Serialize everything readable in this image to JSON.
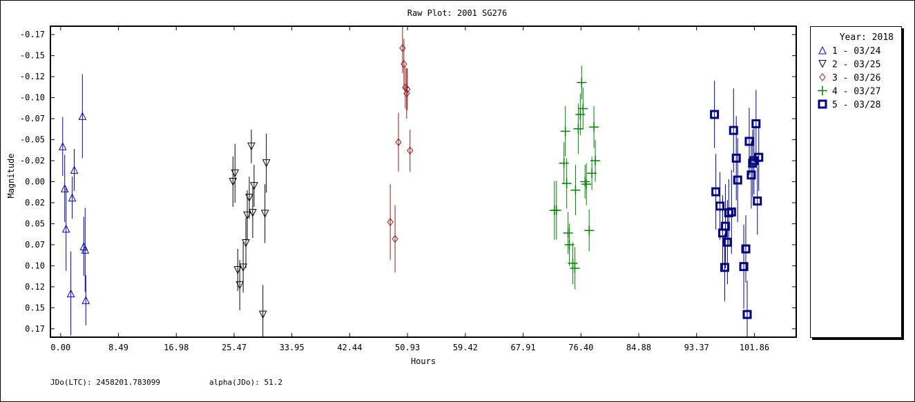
{
  "chart_data": {
    "type": "scatter",
    "title": "Raw Plot: 2001 SG276",
    "xlabel": "Hours",
    "ylabel": "Magnitude",
    "xlim": [
      -1.5,
      108.0
    ],
    "ylim": [
      0.185,
      -0.185
    ],
    "y_inverted": true,
    "grid": false,
    "legend_position": "right",
    "legend_title": "Year: 2018",
    "x_ticks": [
      {
        "v": 0.0,
        "label": "0.00"
      },
      {
        "v": 8.49,
        "label": "8.49"
      },
      {
        "v": 16.98,
        "label": "16.98"
      },
      {
        "v": 25.47,
        "label": "25.47"
      },
      {
        "v": 33.95,
        "label": "33.95"
      },
      {
        "v": 42.44,
        "label": "42.44"
      },
      {
        "v": 50.93,
        "label": "50.93"
      },
      {
        "v": 59.42,
        "label": "59.42"
      },
      {
        "v": 67.91,
        "label": "67.91"
      },
      {
        "v": 76.4,
        "label": "76.40"
      },
      {
        "v": 84.88,
        "label": "84.88"
      },
      {
        "v": 93.37,
        "label": "93.37"
      },
      {
        "v": 101.86,
        "label": "101.86"
      }
    ],
    "y_ticks": [
      {
        "v": -0.175,
        "label": "-0.17"
      },
      {
        "v": -0.15,
        "label": "-0.15"
      },
      {
        "v": -0.125,
        "label": "-0.12"
      },
      {
        "v": -0.1,
        "label": "-0.10"
      },
      {
        "v": -0.075,
        "label": "-0.07"
      },
      {
        "v": -0.05,
        "label": "-0.05"
      },
      {
        "v": -0.025,
        "label": "-0.02"
      },
      {
        "v": 0.0,
        "label": "0.00"
      },
      {
        "v": 0.025,
        "label": "0.02"
      },
      {
        "v": 0.05,
        "label": "0.05"
      },
      {
        "v": 0.075,
        "label": "0.07"
      },
      {
        "v": 0.1,
        "label": "0.10"
      },
      {
        "v": 0.125,
        "label": "0.12"
      },
      {
        "v": 0.15,
        "label": "0.15"
      },
      {
        "v": 0.175,
        "label": "0.17"
      }
    ],
    "series": [
      {
        "name": "1 - 03/24",
        "marker": "triangle-up",
        "color": "#0000c0",
        "points": [
          {
            "x": 0.3,
            "y": -0.042,
            "err": 0.035
          },
          {
            "x": 0.6,
            "y": 0.008,
            "err": 0.04
          },
          {
            "x": 0.8,
            "y": 0.056,
            "err": 0.05
          },
          {
            "x": 1.5,
            "y": 0.133,
            "err": 0.05
          },
          {
            "x": 1.7,
            "y": 0.019,
            "err": 0.025
          },
          {
            "x": 2.0,
            "y": -0.014,
            "err": 0.025
          },
          {
            "x": 3.2,
            "y": -0.078,
            "err": 0.05
          },
          {
            "x": 3.4,
            "y": 0.077,
            "err": 0.035
          },
          {
            "x": 3.6,
            "y": 0.081,
            "err": 0.05
          },
          {
            "x": 3.7,
            "y": 0.141,
            "err": 0.03
          }
        ]
      },
      {
        "name": "2 - 03/25",
        "marker": "triangle-down",
        "color": "#000000",
        "points": [
          {
            "x": 25.3,
            "y": 0.0,
            "err": 0.03
          },
          {
            "x": 25.6,
            "y": -0.01,
            "err": 0.035
          },
          {
            "x": 26.0,
            "y": 0.105,
            "err": 0.025
          },
          {
            "x": 26.3,
            "y": 0.123,
            "err": 0.03
          },
          {
            "x": 26.8,
            "y": 0.102,
            "err": 0.03
          },
          {
            "x": 27.2,
            "y": 0.073,
            "err": 0.03
          },
          {
            "x": 27.4,
            "y": 0.04,
            "err": 0.03
          },
          {
            "x": 27.7,
            "y": 0.019,
            "err": 0.025
          },
          {
            "x": 28.0,
            "y": -0.042,
            "err": 0.02
          },
          {
            "x": 28.2,
            "y": 0.037,
            "err": 0.03
          },
          {
            "x": 28.4,
            "y": 0.005,
            "err": 0.025
          },
          {
            "x": 29.7,
            "y": 0.158,
            "err": 0.035
          },
          {
            "x": 30.0,
            "y": 0.038,
            "err": 0.035
          },
          {
            "x": 30.2,
            "y": -0.022,
            "err": 0.035
          }
        ]
      },
      {
        "name": "3 - 03/26",
        "marker": "diamond",
        "color": "#8b1a1a",
        "points": [
          {
            "x": 48.4,
            "y": 0.048,
            "err": 0.045
          },
          {
            "x": 49.1,
            "y": 0.068,
            "err": 0.04
          },
          {
            "x": 49.6,
            "y": -0.047,
            "err": 0.035
          },
          {
            "x": 50.2,
            "y": -0.159,
            "err": 0.03
          },
          {
            "x": 50.4,
            "y": -0.14,
            "err": 0.03
          },
          {
            "x": 50.6,
            "y": -0.112,
            "err": 0.025
          },
          {
            "x": 50.8,
            "y": -0.105,
            "err": 0.03
          },
          {
            "x": 50.9,
            "y": -0.11,
            "err": 0.025
          },
          {
            "x": 51.3,
            "y": -0.037,
            "err": 0.025
          }
        ]
      },
      {
        "name": "4 - 03/27",
        "marker": "plus",
        "color": "#008000",
        "points": [
          {
            "x": 72.5,
            "y": 0.034,
            "err": 0.035
          },
          {
            "x": 72.8,
            "y": 0.034,
            "err": 0.035
          },
          {
            "x": 73.9,
            "y": -0.022,
            "err": 0.025
          },
          {
            "x": 74.1,
            "y": -0.06,
            "err": 0.03
          },
          {
            "x": 74.3,
            "y": 0.002,
            "err": 0.03
          },
          {
            "x": 74.5,
            "y": 0.061,
            "err": 0.025
          },
          {
            "x": 74.7,
            "y": 0.075,
            "err": 0.025
          },
          {
            "x": 75.2,
            "y": 0.097,
            "err": 0.025
          },
          {
            "x": 75.5,
            "y": 0.103,
            "err": 0.025
          },
          {
            "x": 75.6,
            "y": 0.01,
            "err": 0.03
          },
          {
            "x": 76.0,
            "y": -0.063,
            "err": 0.03
          },
          {
            "x": 76.3,
            "y": -0.08,
            "err": 0.025
          },
          {
            "x": 76.5,
            "y": -0.118,
            "err": 0.02
          },
          {
            "x": 76.7,
            "y": -0.087,
            "err": 0.025
          },
          {
            "x": 77.0,
            "y": 0.0,
            "err": 0.02
          },
          {
            "x": 77.2,
            "y": 0.003,
            "err": 0.025
          },
          {
            "x": 77.6,
            "y": 0.058,
            "err": 0.025
          },
          {
            "x": 78.0,
            "y": -0.01,
            "err": 0.02
          },
          {
            "x": 78.3,
            "y": -0.065,
            "err": 0.025
          },
          {
            "x": 78.5,
            "y": -0.025,
            "err": 0.025
          }
        ]
      },
      {
        "name": "5 - 03/28",
        "marker": "square",
        "color": "#00007f",
        "points": [
          {
            "x": 96.0,
            "y": -0.08,
            "err": 0.04
          },
          {
            "x": 96.2,
            "y": 0.012,
            "err": 0.045
          },
          {
            "x": 96.8,
            "y": 0.029,
            "err": 0.04
          },
          {
            "x": 97.2,
            "y": 0.061,
            "err": 0.045
          },
          {
            "x": 97.5,
            "y": 0.102,
            "err": 0.04
          },
          {
            "x": 97.6,
            "y": 0.053,
            "err": 0.05
          },
          {
            "x": 97.9,
            "y": 0.072,
            "err": 0.05
          },
          {
            "x": 98.1,
            "y": 0.037,
            "err": 0.04
          },
          {
            "x": 98.5,
            "y": 0.036,
            "err": 0.05
          },
          {
            "x": 98.8,
            "y": -0.061,
            "err": 0.05
          },
          {
            "x": 99.2,
            "y": -0.028,
            "err": 0.05
          },
          {
            "x": 99.4,
            "y": -0.002,
            "err": 0.05
          },
          {
            "x": 100.3,
            "y": 0.101,
            "err": 0.05
          },
          {
            "x": 100.6,
            "y": 0.08,
            "err": 0.04
          },
          {
            "x": 100.8,
            "y": 0.158,
            "err": 0.04
          },
          {
            "x": 101.1,
            "y": -0.048,
            "err": 0.04
          },
          {
            "x": 101.4,
            "y": -0.008,
            "err": 0.04
          },
          {
            "x": 101.6,
            "y": -0.022,
            "err": 0.04
          },
          {
            "x": 101.8,
            "y": -0.025,
            "err": 0.04
          },
          {
            "x": 102.1,
            "y": -0.069,
            "err": 0.04
          },
          {
            "x": 102.3,
            "y": 0.023,
            "err": 0.04
          },
          {
            "x": 102.5,
            "y": -0.029,
            "err": 0.04
          }
        ]
      }
    ]
  },
  "footer": {
    "jdo": "JDo(LTC): 2458201.783099",
    "alpha": "alpha(JDo): 51.2"
  }
}
